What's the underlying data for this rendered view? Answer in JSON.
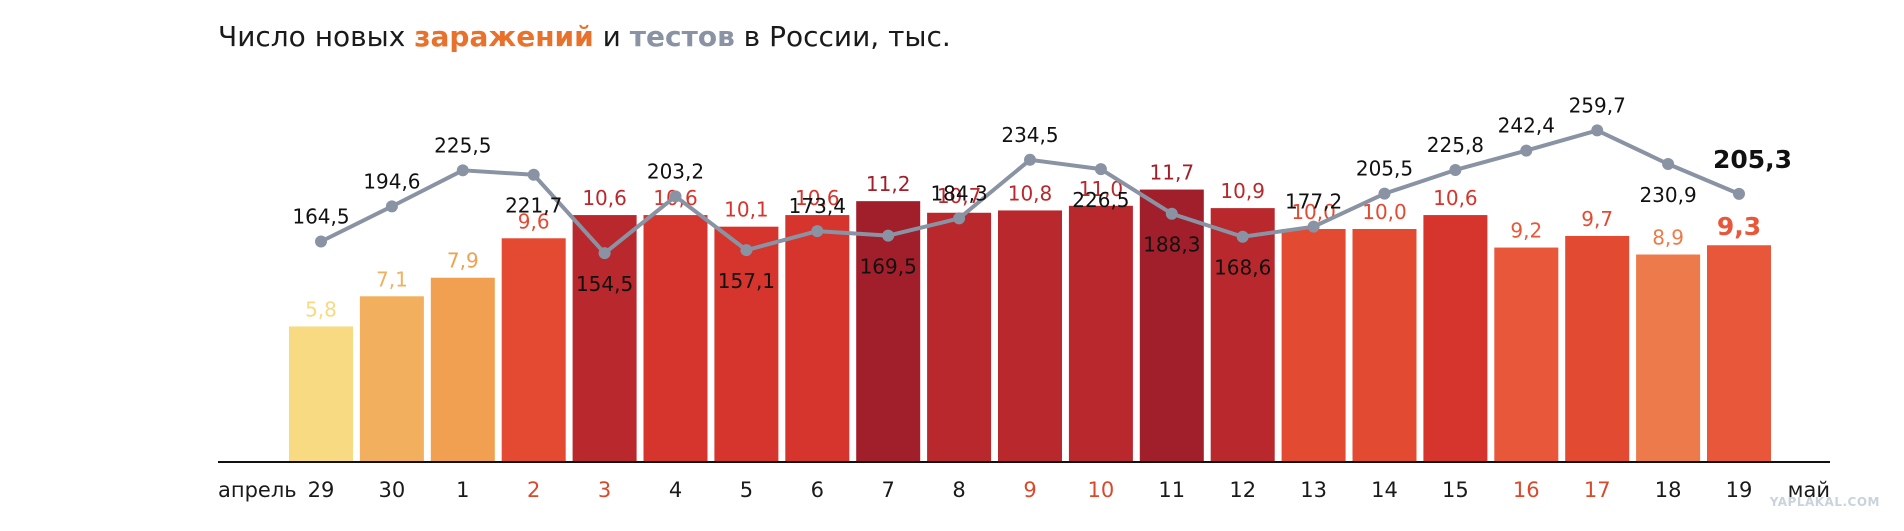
{
  "title": {
    "part1": "Число новых ",
    "infections_word": "заражений",
    "part2": " и ",
    "tests_word": "тестов",
    "part3": " в России, тыс."
  },
  "watermark": "YAPLAKAL.COM",
  "chart_data": {
    "type": "bar+line",
    "title": "Число новых заражений и тестов в России, тыс.",
    "x_start_label": "апрель",
    "x_end_label": "май",
    "categories": [
      "29",
      "30",
      "1",
      "2",
      "3",
      "4",
      "5",
      "6",
      "7",
      "8",
      "9",
      "10",
      "11",
      "12",
      "13",
      "14",
      "15",
      "16",
      "17",
      "18",
      "19"
    ],
    "category_highlight": [
      false,
      false,
      false,
      true,
      true,
      false,
      false,
      false,
      false,
      false,
      true,
      true,
      false,
      false,
      false,
      false,
      false,
      true,
      true,
      false,
      false
    ],
    "highlight_color": "#d94a2b",
    "series": [
      {
        "name": "заражений",
        "kind": "bar",
        "values": [
          5.8,
          7.1,
          7.9,
          9.6,
          10.6,
          10.6,
          10.1,
          10.6,
          11.2,
          10.7,
          10.8,
          11.0,
          11.7,
          10.9,
          10.0,
          10.0,
          10.6,
          9.2,
          9.7,
          8.9,
          9.3
        ],
        "labels": [
          "5,8",
          "7,1",
          "7,9",
          "9,6",
          "10,6",
          "10,6",
          "10,1",
          "10,6",
          "11,2",
          "10,7",
          "10,8",
          "11,0",
          "11,7",
          "10,9",
          "10,0",
          "10,0",
          "10,6",
          "9,2",
          "9,7",
          "8,9",
          "9,3"
        ],
        "colors": [
          "#f7da82",
          "#f2b05e",
          "#f0a050",
          "#e44a32",
          "#b8282c",
          "#d5352c",
          "#d5352c",
          "#d5352c",
          "#a11f2b",
          "#b8282c",
          "#b8282c",
          "#b8282c",
          "#a11f2b",
          "#b8282c",
          "#e34a32",
          "#e34a32",
          "#d5352c",
          "#e8573a",
          "#e34a32",
          "#ec7a4b",
          "#e8573a"
        ]
      },
      {
        "name": "тестов",
        "kind": "line",
        "color": "#8a93a3",
        "values": [
          164.5,
          194.6,
          225.5,
          221.7,
          154.5,
          203.2,
          157.1,
          173.4,
          169.5,
          184.3,
          234.5,
          226.5,
          188.3,
          168.6,
          177.2,
          205.5,
          225.8,
          242.4,
          259.7,
          230.9,
          205.3
        ],
        "labels": [
          "164,5",
          "194,6",
          "225,5",
          "221,7",
          "154,5",
          "203,2",
          "157,1",
          "173,4",
          "169,5",
          "184,3",
          "234,5",
          "226,5",
          "188,3",
          "168,6",
          "177,2",
          "205,5",
          "225,8",
          "242,4",
          "259,7",
          "230,9",
          "205,3"
        ],
        "label_position": [
          "above",
          "above",
          "above",
          "below",
          "below",
          "above",
          "below",
          "above",
          "below",
          "above",
          "above",
          "below",
          "below",
          "below",
          "above",
          "above",
          "above",
          "above",
          "above",
          "below",
          "above"
        ]
      }
    ],
    "grid": false,
    "legend": "none"
  }
}
